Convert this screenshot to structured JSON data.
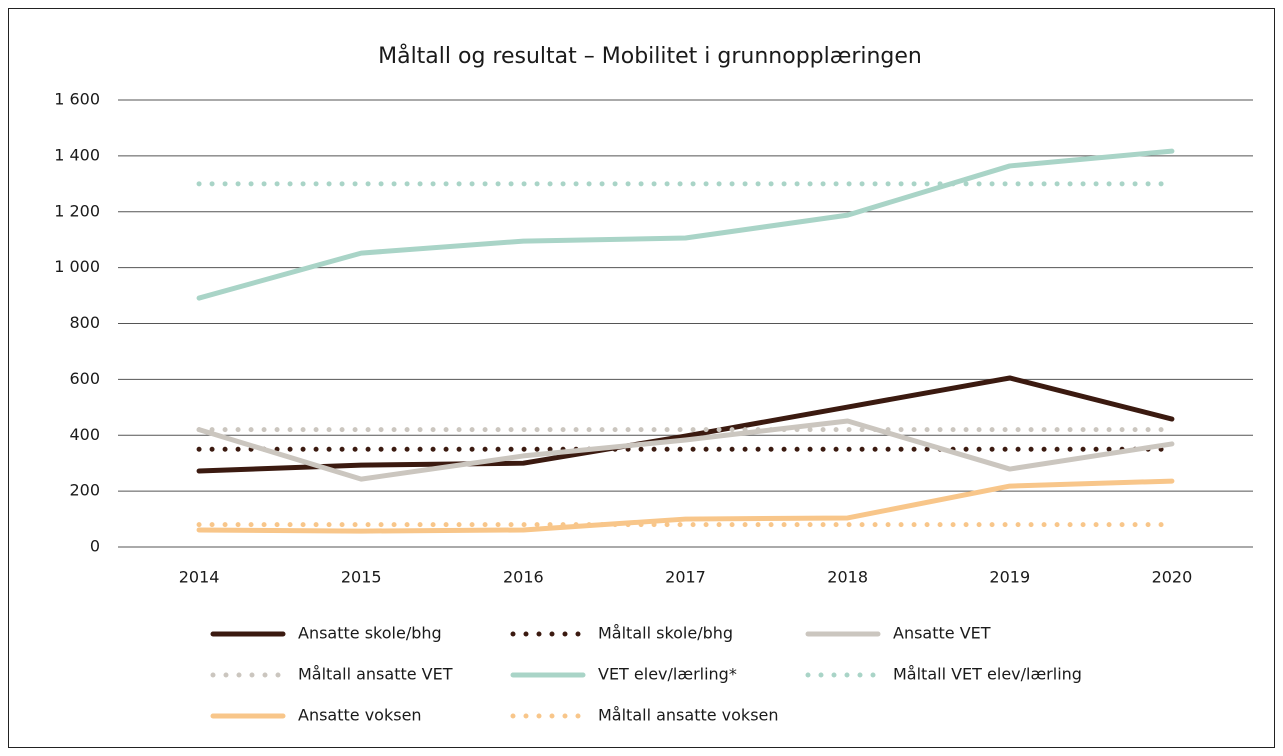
{
  "chart_data": {
    "type": "line",
    "title": "Måltall og resultat – Mobilitet i grunnopplæringen",
    "categories": [
      "2014",
      "2015",
      "2016",
      "2017",
      "2018",
      "2019",
      "2020"
    ],
    "ylim": [
      0,
      1600
    ],
    "yticks": [
      0,
      200,
      400,
      600,
      800,
      {
        "value": 1000,
        "label": "1 000"
      },
      {
        "value": 1200,
        "label": "1 200"
      },
      {
        "value": 1400,
        "label": "1 400"
      },
      {
        "value": 1600,
        "label": "1 600"
      }
    ],
    "grid": true,
    "series": [
      {
        "name": "Ansatte skole/bhg",
        "color": "#3b1a10",
        "style": "solid",
        "values": [
          272,
          293,
          300,
          397,
          501,
          605,
          458
        ]
      },
      {
        "name": "Måltall skole/bhg",
        "color": "#3b1a10",
        "style": "dotted",
        "values": [
          350,
          350,
          350,
          350,
          350,
          350,
          350
        ]
      },
      {
        "name": "Ansatte VET",
        "color": "#cbc6bf",
        "style": "solid",
        "values": [
          420,
          243,
          326,
          383,
          451,
          279,
          369
        ]
      },
      {
        "name": "Måltall ansatte VET",
        "color": "#cbc6bf",
        "style": "dotted",
        "values": [
          420,
          420,
          420,
          420,
          420,
          420,
          420
        ]
      },
      {
        "name": "VET elev/lærling*",
        "color": "#a9d4c7",
        "style": "solid",
        "values": [
          891,
          1052,
          1095,
          1106,
          1188,
          1364,
          1417
        ]
      },
      {
        "name": "Måltall VET elev/lærling",
        "color": "#a9d4c7",
        "style": "dotted",
        "values": [
          1300,
          1300,
          1300,
          1300,
          1300,
          1300,
          1300
        ]
      },
      {
        "name": "Ansatte voksen",
        "color": "#f8c68a",
        "style": "solid",
        "values": [
          61,
          57,
          61,
          100,
          104,
          218,
          236
        ]
      },
      {
        "name": "Måltall ansatte voksen",
        "color": "#f8c68a",
        "style": "dotted",
        "values": [
          80,
          80,
          80,
          80,
          80,
          80,
          80
        ]
      }
    ]
  }
}
